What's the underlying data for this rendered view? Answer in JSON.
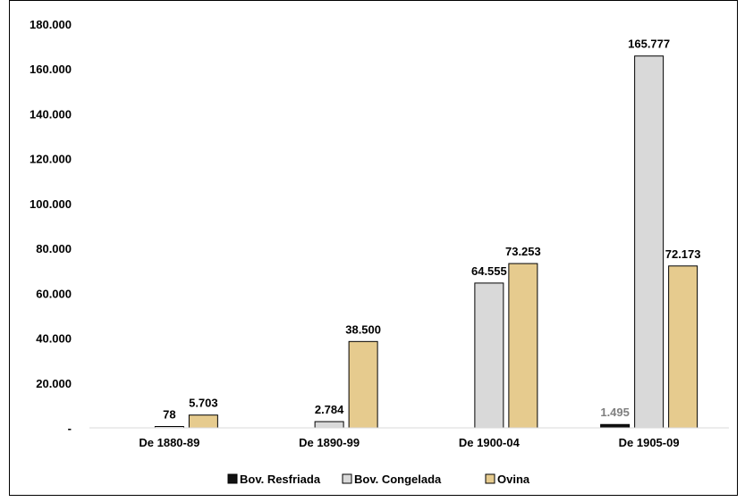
{
  "chart_data": {
    "type": "bar",
    "title": "",
    "xlabel": "",
    "ylabel": "",
    "ylim": [
      0,
      180000
    ],
    "y_ticks": [
      0,
      20000,
      40000,
      60000,
      80000,
      100000,
      120000,
      140000,
      160000,
      180000
    ],
    "y_tick_labels": [
      "-",
      "20.000",
      "40.000",
      "60.000",
      "80.000",
      "100.000",
      "120.000",
      "140.000",
      "160.000",
      "180.000"
    ],
    "grid": false,
    "legend_position": "bottom",
    "categories": [
      "De 1880-89",
      "De 1890-99",
      "De 1900-04",
      "De 1905-09"
    ],
    "series": [
      {
        "name": "Bov. Resfriada",
        "color": "#111111",
        "values": [
          null,
          null,
          null,
          1495
        ],
        "labels": [
          "",
          "",
          "",
          "1.495"
        ],
        "label_color": "#7f7f7f"
      },
      {
        "name": "Bov. Congelada",
        "color": "#d9d9d9",
        "values": [
          78,
          2784,
          64555,
          165777
        ],
        "labels": [
          "78",
          "2.784",
          "64.555",
          "165.777"
        ],
        "label_color": "#000000"
      },
      {
        "name": "Ovina",
        "color": "#e6cb8e",
        "values": [
          5703,
          38500,
          73253,
          72173
        ],
        "labels": [
          "5.703",
          "38.500",
          "73.253",
          "72.173"
        ],
        "label_color": "#000000"
      }
    ]
  }
}
